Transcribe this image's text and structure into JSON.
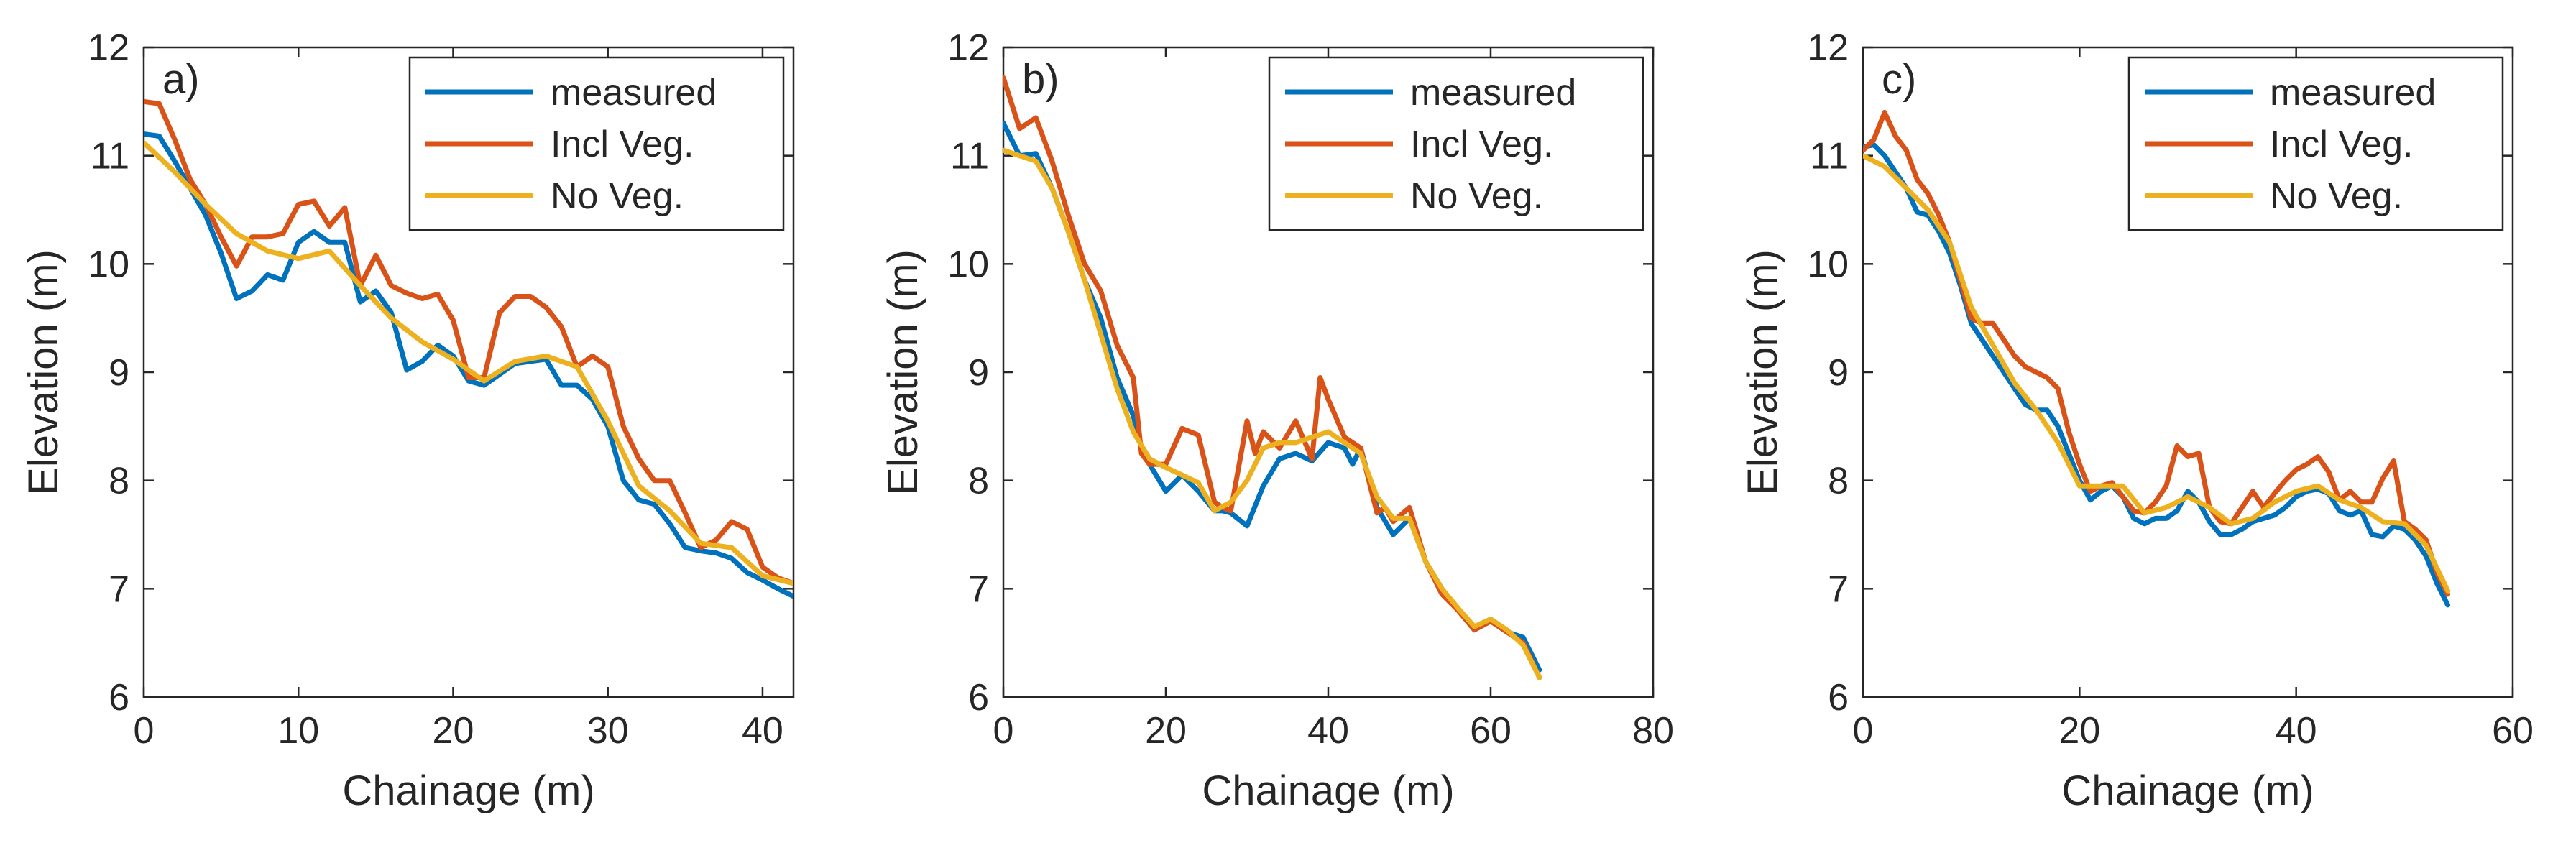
{
  "colors": {
    "measured": "#0072BD",
    "incl_veg": "#D95319",
    "no_veg": "#EDB120",
    "axis": "#262626"
  },
  "chart_data": [
    {
      "type": "line",
      "panel_label": "a)",
      "xlabel": "Chainage (m)",
      "ylabel": "Elevation (m)",
      "xlim": [
        0,
        42
      ],
      "ylim": [
        6,
        12
      ],
      "xticks": [
        0,
        10,
        20,
        30,
        40
      ],
      "yticks": [
        6,
        7,
        8,
        9,
        10,
        11,
        12
      ],
      "legend": {
        "position": "top-right",
        "entries": [
          "measured",
          "Incl Veg.",
          "No Veg."
        ]
      },
      "series": [
        {
          "name": "measured",
          "color_key": "measured",
          "x": [
            0,
            1,
            2,
            3,
            4,
            5,
            6,
            7,
            8,
            9,
            10,
            11,
            12,
            13,
            14,
            15,
            16,
            17,
            18,
            19,
            20,
            21,
            22,
            23,
            24,
            25,
            26,
            27,
            28,
            29,
            30,
            31,
            32,
            33,
            34,
            35,
            36,
            37,
            38,
            39,
            40,
            41,
            42
          ],
          "y": [
            11.2,
            11.18,
            10.95,
            10.7,
            10.45,
            10.1,
            9.68,
            9.75,
            9.9,
            9.85,
            10.2,
            10.3,
            10.2,
            10.2,
            9.65,
            9.75,
            9.55,
            9.02,
            9.1,
            9.25,
            9.15,
            8.92,
            8.88,
            8.98,
            9.08,
            9.1,
            9.12,
            8.88,
            8.88,
            8.75,
            8.5,
            8.0,
            7.82,
            7.78,
            7.6,
            7.38,
            7.35,
            7.33,
            7.28,
            7.15,
            7.08,
            7.0,
            6.93
          ]
        },
        {
          "name": "Incl Veg.",
          "color_key": "incl_veg",
          "x": [
            0,
            1,
            2,
            3,
            4,
            5,
            6,
            7,
            8,
            9,
            10,
            11,
            12,
            13,
            14,
            15,
            16,
            17,
            18,
            19,
            20,
            21,
            22,
            23,
            24,
            25,
            26,
            27,
            28,
            29,
            30,
            31,
            32,
            33,
            34,
            35,
            36,
            37,
            38,
            39,
            40,
            41,
            42
          ],
          "y": [
            11.5,
            11.48,
            11.15,
            10.78,
            10.55,
            10.25,
            9.98,
            10.25,
            10.25,
            10.28,
            10.55,
            10.58,
            10.35,
            10.52,
            9.8,
            10.08,
            9.8,
            9.73,
            9.68,
            9.72,
            9.48,
            8.95,
            8.95,
            9.55,
            9.7,
            9.7,
            9.6,
            9.42,
            9.05,
            9.15,
            9.05,
            8.5,
            8.2,
            8.0,
            8.0,
            7.7,
            7.38,
            7.45,
            7.62,
            7.55,
            7.2,
            7.1,
            7.05
          ]
        },
        {
          "name": "No Veg.",
          "color_key": "no_veg",
          "x": [
            0,
            2,
            4,
            6,
            8,
            10,
            12,
            14,
            16,
            18,
            20,
            22,
            24,
            26,
            28,
            30,
            32,
            34,
            36,
            38,
            40,
            42
          ],
          "y": [
            11.12,
            10.85,
            10.55,
            10.28,
            10.12,
            10.05,
            10.12,
            9.8,
            9.5,
            9.28,
            9.12,
            8.92,
            9.1,
            9.15,
            9.05,
            8.55,
            7.95,
            7.72,
            7.42,
            7.38,
            7.12,
            7.05
          ]
        }
      ]
    },
    {
      "type": "line",
      "panel_label": "b)",
      "xlabel": "Chainage (m)",
      "ylabel": "Elevation (m)",
      "xlim": [
        0,
        80
      ],
      "ylim": [
        6,
        12
      ],
      "xticks": [
        0,
        20,
        40,
        60,
        80
      ],
      "yticks": [
        6,
        7,
        8,
        9,
        10,
        11,
        12
      ],
      "legend": {
        "position": "top-right",
        "entries": [
          "measured",
          "Incl Veg.",
          "No Veg."
        ]
      },
      "series": [
        {
          "name": "measured",
          "color_key": "measured",
          "x": [
            0,
            2,
            4,
            6,
            8,
            10,
            12,
            14,
            16,
            17,
            18,
            20,
            22,
            24,
            26,
            27,
            28,
            30,
            32,
            34,
            36,
            38,
            40,
            42,
            43,
            44,
            46,
            48,
            50,
            52,
            54,
            56,
            58,
            60,
            62,
            64,
            66
          ],
          "y": [
            11.3,
            11.0,
            11.02,
            10.7,
            10.3,
            9.85,
            9.5,
            8.95,
            8.6,
            8.3,
            8.15,
            7.9,
            8.05,
            7.9,
            7.72,
            7.72,
            7.7,
            7.58,
            7.95,
            8.2,
            8.25,
            8.18,
            8.35,
            8.3,
            8.15,
            8.3,
            7.75,
            7.5,
            7.65,
            7.25,
            7.0,
            6.8,
            6.62,
            6.7,
            6.6,
            6.55,
            6.25
          ]
        },
        {
          "name": "Incl Veg.",
          "color_key": "incl_veg",
          "x": [
            0,
            2,
            4,
            6,
            8,
            10,
            12,
            14,
            16,
            17,
            18,
            20,
            22,
            24,
            26,
            27,
            28,
            30,
            31,
            32,
            34,
            36,
            38,
            39,
            40,
            42,
            44,
            46,
            47,
            48,
            50,
            52,
            54,
            56,
            58,
            60,
            62,
            64,
            66
          ],
          "y": [
            11.72,
            11.25,
            11.35,
            10.95,
            10.45,
            10.0,
            9.75,
            9.25,
            8.95,
            8.25,
            8.15,
            8.15,
            8.48,
            8.42,
            7.8,
            7.75,
            7.72,
            8.55,
            8.25,
            8.45,
            8.3,
            8.55,
            8.2,
            8.95,
            8.75,
            8.4,
            8.3,
            7.7,
            7.75,
            7.62,
            7.75,
            7.25,
            6.95,
            6.8,
            6.62,
            6.7,
            6.6,
            6.5,
            6.18
          ]
        },
        {
          "name": "No Veg.",
          "color_key": "no_veg",
          "x": [
            0,
            2,
            4,
            6,
            8,
            10,
            12,
            14,
            16,
            18,
            20,
            22,
            24,
            26,
            28,
            30,
            32,
            34,
            36,
            38,
            40,
            42,
            44,
            46,
            48,
            50,
            52,
            54,
            56,
            58,
            60,
            62,
            64,
            66
          ],
          "y": [
            11.05,
            11.0,
            10.95,
            10.7,
            10.3,
            9.85,
            9.35,
            8.85,
            8.45,
            8.2,
            8.12,
            8.05,
            7.98,
            7.72,
            7.8,
            8.0,
            8.3,
            8.35,
            8.35,
            8.4,
            8.45,
            8.35,
            8.25,
            7.85,
            7.65,
            7.65,
            7.25,
            7.0,
            6.82,
            6.65,
            6.72,
            6.62,
            6.48,
            6.18
          ]
        }
      ]
    },
    {
      "type": "line",
      "panel_label": "c)",
      "xlabel": "Chainage (m)",
      "ylabel": "Elevation (m)",
      "xlim": [
        0,
        60
      ],
      "ylim": [
        6,
        12
      ],
      "xticks": [
        0,
        20,
        40,
        60
      ],
      "yticks": [
        6,
        7,
        8,
        9,
        10,
        11,
        12
      ],
      "legend": {
        "position": "top-right",
        "entries": [
          "measured",
          "Incl Veg.",
          "No Veg."
        ]
      },
      "series": [
        {
          "name": "measured",
          "color_key": "measured",
          "x": [
            0,
            1,
            2,
            3,
            4,
            5,
            6,
            7,
            8,
            9,
            10,
            11,
            12,
            13,
            14,
            15,
            16,
            17,
            18,
            19,
            20,
            21,
            22,
            23,
            24,
            25,
            26,
            27,
            28,
            29,
            30,
            31,
            32,
            33,
            34,
            35,
            36,
            37,
            38,
            39,
            40,
            41,
            42,
            43,
            44,
            45,
            46,
            47,
            48,
            49,
            50,
            51,
            52,
            53,
            54
          ],
          "y": [
            11.08,
            11.1,
            11.0,
            10.85,
            10.7,
            10.48,
            10.45,
            10.3,
            10.1,
            9.8,
            9.45,
            9.3,
            9.15,
            9.0,
            8.85,
            8.7,
            8.65,
            8.65,
            8.5,
            8.25,
            8.0,
            7.82,
            7.9,
            7.95,
            7.85,
            7.65,
            7.6,
            7.65,
            7.65,
            7.72,
            7.9,
            7.8,
            7.62,
            7.5,
            7.5,
            7.55,
            7.62,
            7.65,
            7.68,
            7.75,
            7.85,
            7.9,
            7.92,
            7.88,
            7.72,
            7.68,
            7.72,
            7.5,
            7.48,
            7.58,
            7.55,
            7.45,
            7.3,
            7.05,
            6.85
          ]
        },
        {
          "name": "Incl Veg.",
          "color_key": "incl_veg",
          "x": [
            0,
            1,
            2,
            3,
            4,
            5,
            6,
            7,
            8,
            9,
            10,
            11,
            12,
            13,
            14,
            15,
            16,
            17,
            18,
            19,
            20,
            21,
            22,
            23,
            24,
            25,
            26,
            27,
            28,
            29,
            30,
            31,
            32,
            33,
            34,
            35,
            36,
            37,
            38,
            39,
            40,
            41,
            42,
            43,
            44,
            45,
            46,
            47,
            48,
            49,
            50,
            51,
            52,
            53,
            54
          ],
          "y": [
            11.05,
            11.15,
            11.4,
            11.18,
            11.05,
            10.78,
            10.65,
            10.45,
            10.2,
            9.85,
            9.5,
            9.45,
            9.45,
            9.3,
            9.15,
            9.05,
            9.0,
            8.95,
            8.85,
            8.45,
            8.15,
            7.9,
            7.95,
            7.98,
            7.85,
            7.72,
            7.7,
            7.8,
            7.95,
            8.32,
            8.22,
            8.25,
            7.75,
            7.62,
            7.6,
            7.75,
            7.9,
            7.75,
            7.88,
            8.0,
            8.1,
            8.15,
            8.22,
            8.08,
            7.82,
            7.9,
            7.8,
            7.8,
            8.02,
            8.18,
            7.62,
            7.55,
            7.45,
            7.15,
            6.95
          ]
        },
        {
          "name": "No Veg.",
          "color_key": "no_veg",
          "x": [
            0,
            2,
            4,
            6,
            8,
            10,
            12,
            14,
            16,
            18,
            20,
            22,
            24,
            26,
            28,
            30,
            32,
            34,
            36,
            38,
            40,
            42,
            44,
            46,
            48,
            50,
            52,
            54
          ],
          "y": [
            11.0,
            10.9,
            10.7,
            10.5,
            10.2,
            9.6,
            9.25,
            8.9,
            8.65,
            8.35,
            7.95,
            7.95,
            7.95,
            7.7,
            7.75,
            7.85,
            7.75,
            7.6,
            7.65,
            7.8,
            7.9,
            7.95,
            7.82,
            7.75,
            7.62,
            7.6,
            7.4,
            6.98
          ]
        }
      ]
    }
  ]
}
